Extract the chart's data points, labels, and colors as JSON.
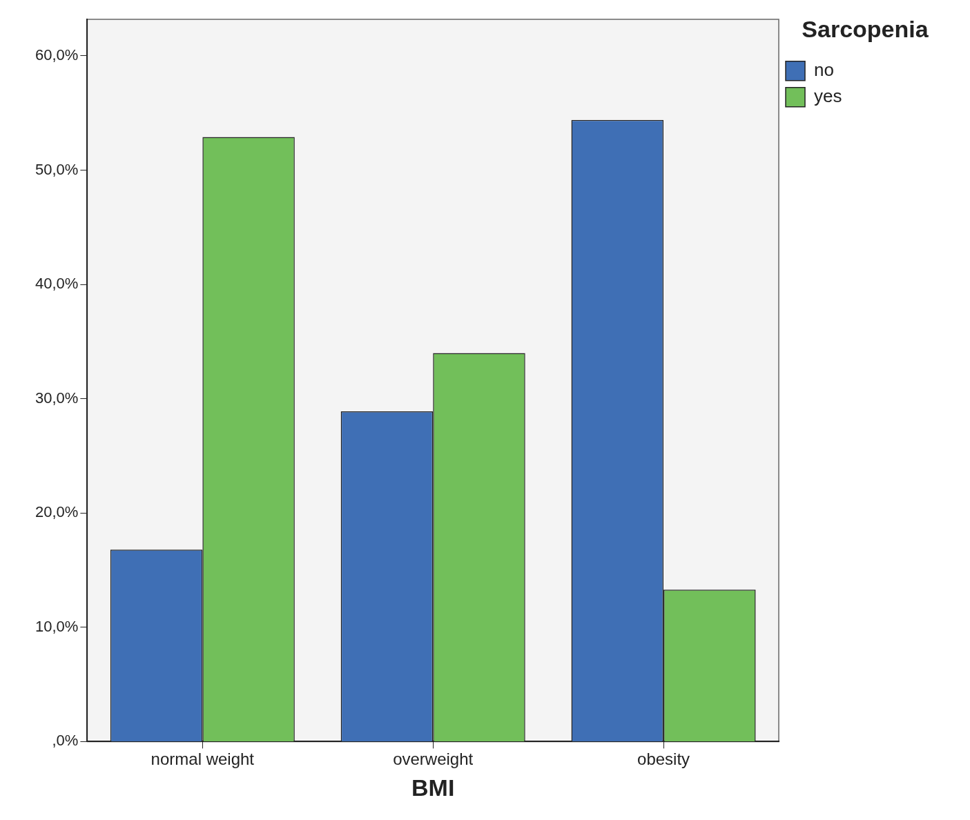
{
  "chart_data": {
    "type": "bar",
    "xlabel": "BMI",
    "legend_title": "Sarcopenia",
    "categories": [
      "normal weight",
      "overweight",
      "obesity"
    ],
    "series": [
      {
        "name": "no",
        "color": "#3f6fb5",
        "values": [
          16.8,
          28.9,
          54.4
        ]
      },
      {
        "name": "yes",
        "color": "#72bf5a",
        "values": [
          52.9,
          34.0,
          13.3
        ]
      }
    ],
    "ylim": [
      0,
      63.2
    ],
    "yticks": [
      {
        "value": 0,
        "label": ",0%"
      },
      {
        "value": 10,
        "label": "10,0%"
      },
      {
        "value": 20,
        "label": "20,0%"
      },
      {
        "value": 30,
        "label": "30,0%"
      },
      {
        "value": 40,
        "label": "40,0%"
      },
      {
        "value": 50,
        "label": "50,0%"
      },
      {
        "value": 60,
        "label": "60,0%"
      }
    ],
    "grid": false,
    "legend": "top right"
  }
}
